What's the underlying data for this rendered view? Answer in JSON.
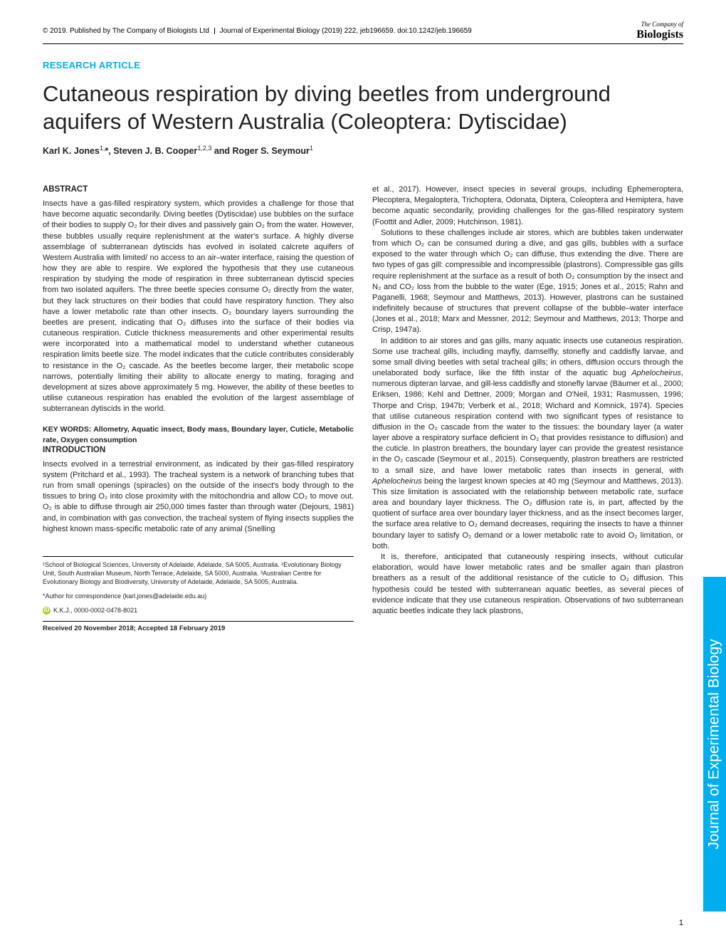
{
  "header": {
    "copyright": "© 2019. Published by The Company of Biologists Ltd",
    "journal_citation": "Journal of Experimental Biology (2019) 222, jeb196659. doi:10.1242/jeb.196659",
    "logo_top": "The Company of",
    "logo_bottom": "Biologists"
  },
  "article_type": "RESEARCH ARTICLE",
  "title": "Cutaneous respiration by diving beetles from underground aquifers of Western Australia (Coleoptera: Dytiscidae)",
  "authors_html": "Karl K. Jones<sup>1,</sup>*, Steven J. B. Cooper<sup>1,2,3</sup> and Roger S. Seymour<sup>1</sup>",
  "abstract": {
    "heading": "ABSTRACT",
    "text": "Insects have a gas-filled respiratory system, which provides a challenge for those that have become aquatic secondarily. Diving beetles (Dytiscidae) use bubbles on the surface of their bodies to supply O₂ for their dives and passively gain O₂ from the water. However, these bubbles usually require replenishment at the water's surface. A highly diverse assemblage of subterranean dytiscids has evolved in isolated calcrete aquifers of Western Australia with limited/ no access to an air–water interface, raising the question of how they are able to respire. We explored the hypothesis that they use cutaneous respiration by studying the mode of respiration in three subterranean dytiscid species from two isolated aquifers. The three beetle species consume O₂ directly from the water, but they lack structures on their bodies that could have respiratory function. They also have a lower metabolic rate than other insects. O₂ boundary layers surrounding the beetles are present, indicating that O₂ diffuses into the surface of their bodies via cutaneous respiration. Cuticle thickness measurements and other experimental results were incorporated into a mathematical model to understand whether cutaneous respiration limits beetle size. The model indicates that the cuticle contributes considerably to resistance in the O₂ cascade. As the beetles become larger, their metabolic scope narrows, potentially limiting their ability to allocate energy to mating, foraging and development at sizes above approximately 5 mg. However, the ability of these beetles to utilise cutaneous respiration has enabled the evolution of the largest assemblage of subterranean dytiscids in the world."
  },
  "keywords": {
    "label": "KEY WORDS:",
    "text": "Allometry, Aquatic insect, Body mass, Boundary layer, Cuticle, Metabolic rate, Oxygen consumption"
  },
  "introduction": {
    "heading": "INTRODUCTION",
    "p1": "Insects evolved in a terrestrial environment, as indicated by their gas-filled respiratory system (Pritchard et al., 1993). The tracheal system is a network of branching tubes that run from small openings (spiracles) on the outside of the insect's body through to the tissues to bring O₂ into close proximity with the mitochondria and allow CO₂ to move out. O₂ is able to diffuse through air 250,000 times faster than through water (Dejours, 1981) and, in combination with gas convection, the tracheal system of flying insects supplies the highest known mass-specific metabolic rate of any animal (Snelling"
  },
  "right_col": {
    "p1": "et al., 2017). However, insect species in several groups, including Ephemeroptera, Plecoptera, Megaloptera, Trichoptera, Odonata, Diptera, Coleoptera and Hemiptera, have become aquatic secondarily, providing challenges for the gas-filled respiratory system (Foottit and Adler, 2009; Hutchinson, 1981).",
    "p2": "Solutions to these challenges include air stores, which are bubbles taken underwater from which O₂ can be consumed during a dive, and gas gills, bubbles with a surface exposed to the water through which O₂ can diffuse, thus extending the dive. There are two types of gas gill: compressible and incompressible (plastrons). Compressible gas gills require replenishment at the surface as a result of both O₂ consumption by the insect and N₂ and CO₂ loss from the bubble to the water (Ege, 1915; Jones et al., 2015; Rahn and Paganelli, 1968; Seymour and Matthews, 2013). However, plastrons can be sustained indefinitely because of structures that prevent collapse of the bubble–water interface (Jones et al., 2018; Marx and Messner, 2012; Seymour and Matthews, 2013; Thorpe and Crisp, 1947a).",
    "p3_a": "In addition to air stores and gas gills, many aquatic insects use cutaneous respiration. Some use tracheal gills, including mayfly, damselfly, stonefly and caddisfly larvae, and some small diving beetles with setal tracheal gills; in others, diffusion occurs through the unelaborated body surface, like the fifth instar of the aquatic bug ",
    "p3_ital": "Aphelocheirus",
    "p3_b": ", numerous dipteran larvae, and gill-less caddisfly and stonefly larvae (Bäumer et al., 2000; Eriksen, 1986; Kehl and Dettner, 2009; Morgan and O'Neil, 1931; Rasmussen, 1996; Thorpe and Crisp, 1947b; Verberk et al., 2018; Wichard and Komnick, 1974). Species that utilise cutaneous respiration contend with two significant types of resistance to diffusion in the O₂ cascade from the water to the tissues: the boundary layer (a water layer above a respiratory surface deficient in O₂ that provides resistance to diffusion) and the cuticle. In plastron breathers, the boundary layer can provide the greatest resistance in the O₂ cascade (Seymour et al., 2015). Consequently, plastron breathers are restricted to a small size, and have lower metabolic rates than insects in general, with ",
    "p3_ital2": "Aphelocheirus",
    "p3_c": " being the largest known species at 40 mg (Seymour and Matthews, 2013). This size limitation is associated with the relationship between metabolic rate, surface area and boundary layer thickness. The O₂ diffusion rate is, in part, affected by the quotient of surface area over boundary layer thickness, and as the insect becomes larger, the surface area relative to O₂ demand decreases, requiring the insects to have a thinner boundary layer to satisfy O₂ demand or a lower metabolic rate to avoid O₂ limitation, or both.",
    "p4": "It is, therefore, anticipated that cutaneously respiring insects, without cuticular elaboration, would have lower metabolic rates and be smaller again than plastron breathers as a result of the additional resistance of the cuticle to O₂ diffusion. This hypothesis could be tested with subterranean aquatic beetles, as several pieces of evidence indicate that they use cutaneous respiration. Observations of two subterranean aquatic beetles indicate they lack plastrons,"
  },
  "footnotes": {
    "affil": "¹School of Biological Sciences, University of Adelaide, Adelaide, SA 5005, Australia. ²Evolutionary Biology Unit, South Australian Museum, North Terrace, Adelaide, SA 5000, Australia. ³Australian Centre for Evolutionary Biology and Biodiversity, University of Adelaide, Adelaide, SA 5005, Australia.",
    "corr": "*Author for correspondence (karl.jones@adelaide.edu.au)",
    "orcid": "K.K.J., 0000-0002-0478-8021",
    "received": "Received 20 November 2018; Accepted 18 February 2019"
  },
  "sidebar": "Journal of Experimental Biology",
  "page_number": "1",
  "colors": {
    "accent": "#00aeef",
    "text": "#231f20",
    "orcid": "#a6ce39",
    "background": "#ffffff"
  }
}
